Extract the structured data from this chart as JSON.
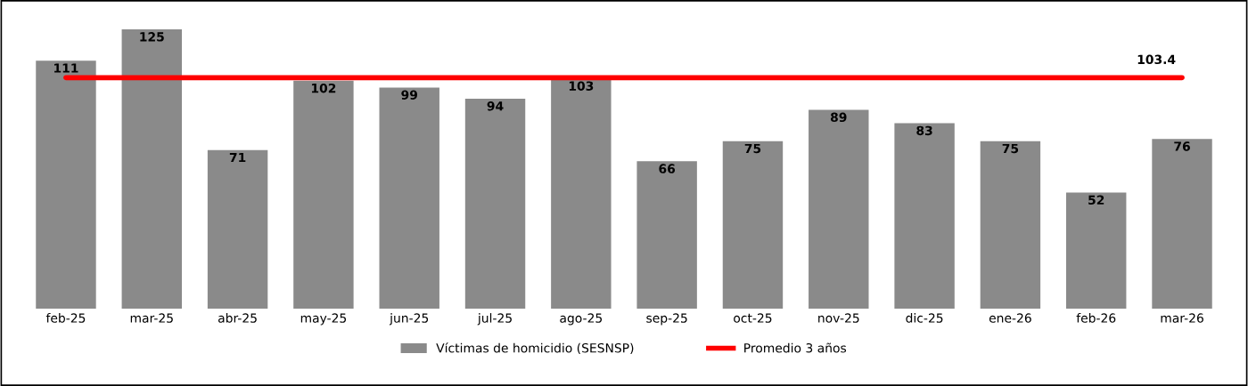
{
  "chart_data": {
    "type": "bar",
    "categories": [
      "feb-25",
      "mar-25",
      "abr-25",
      "may-25",
      "jun-25",
      "jul-25",
      "ago-25",
      "sep-25",
      "oct-25",
      "nov-25",
      "dic-25",
      "ene-26",
      "feb-26",
      "mar-26"
    ],
    "series": [
      {
        "name": "Víctimas de homicidio (SESNSP)",
        "color": "#8a8a8a",
        "values": [
          111,
          125,
          71,
          102,
          99,
          94,
          103,
          66,
          75,
          89,
          83,
          75,
          52,
          76
        ]
      },
      {
        "name": "Promedio 3 años",
        "type": "line",
        "color": "#ff0000",
        "values": [
          103.4,
          103.4,
          103.4,
          103.4,
          103.4,
          103.4,
          103.4,
          103.4,
          103.4,
          103.4,
          103.4,
          103.4,
          103.4,
          103.4
        ],
        "value_labels": [
          null,
          null,
          null,
          null,
          null,
          null,
          null,
          null,
          null,
          null,
          null,
          null,
          null,
          "103.4"
        ]
      }
    ],
    "data_labels": true,
    "tick_labels": "x",
    "grid": false,
    "legend": "bottom"
  }
}
